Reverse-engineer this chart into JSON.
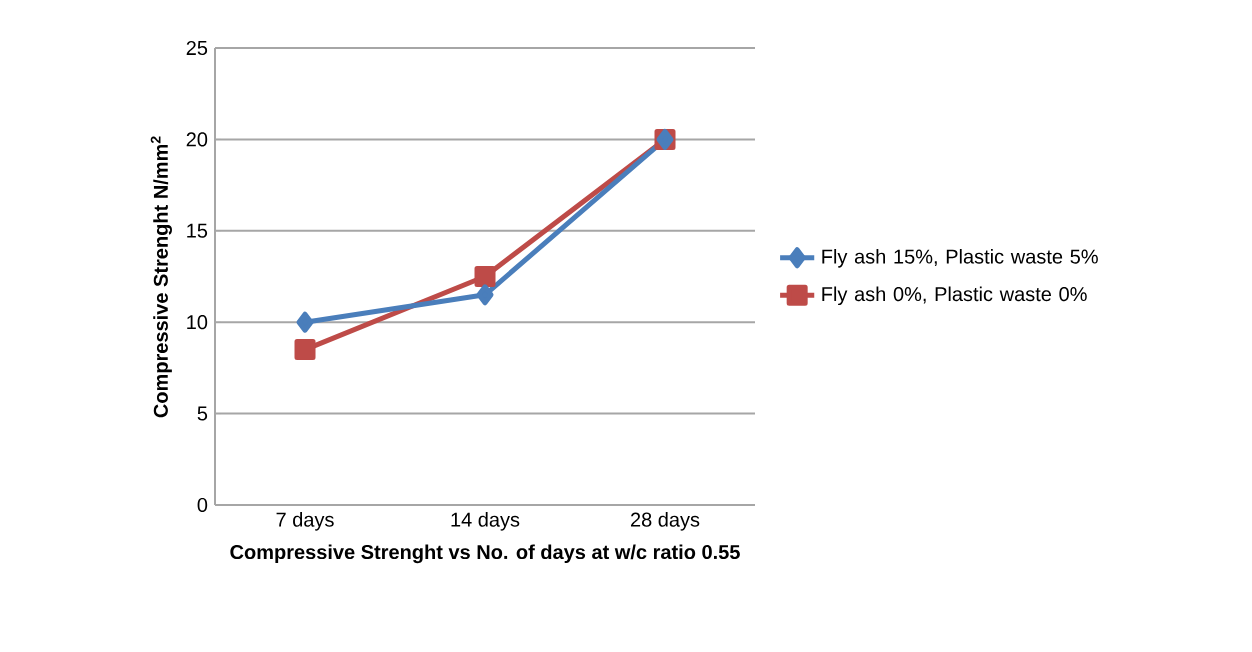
{
  "chart_data": {
    "type": "line",
    "xlabel": "Compressive Strenght vs No. of days at w/c ratio 0.55",
    "ylabel": "Compressive Strenght N/mm$^{2}$",
    "categories": [
      "7 days",
      "14 days",
      "28 days"
    ],
    "series": [
      {
        "name": "Fly ash 15%, Plastic waste 5%",
        "color": "#4a7ebb",
        "values": [
          10,
          11.5,
          20
        ],
        "marker": "diamond"
      },
      {
        "name": "Fly ash 0%, Plastic waste 0%",
        "color": "#be4b48",
        "values": [
          8.5,
          12.5,
          20
        ],
        "marker": "square"
      }
    ],
    "ylim": [
      0,
      25
    ],
    "yticks": [
      0,
      5,
      10,
      15,
      20,
      25
    ],
    "grid": "y",
    "legend": "right",
    "line_style": "solid"
  }
}
